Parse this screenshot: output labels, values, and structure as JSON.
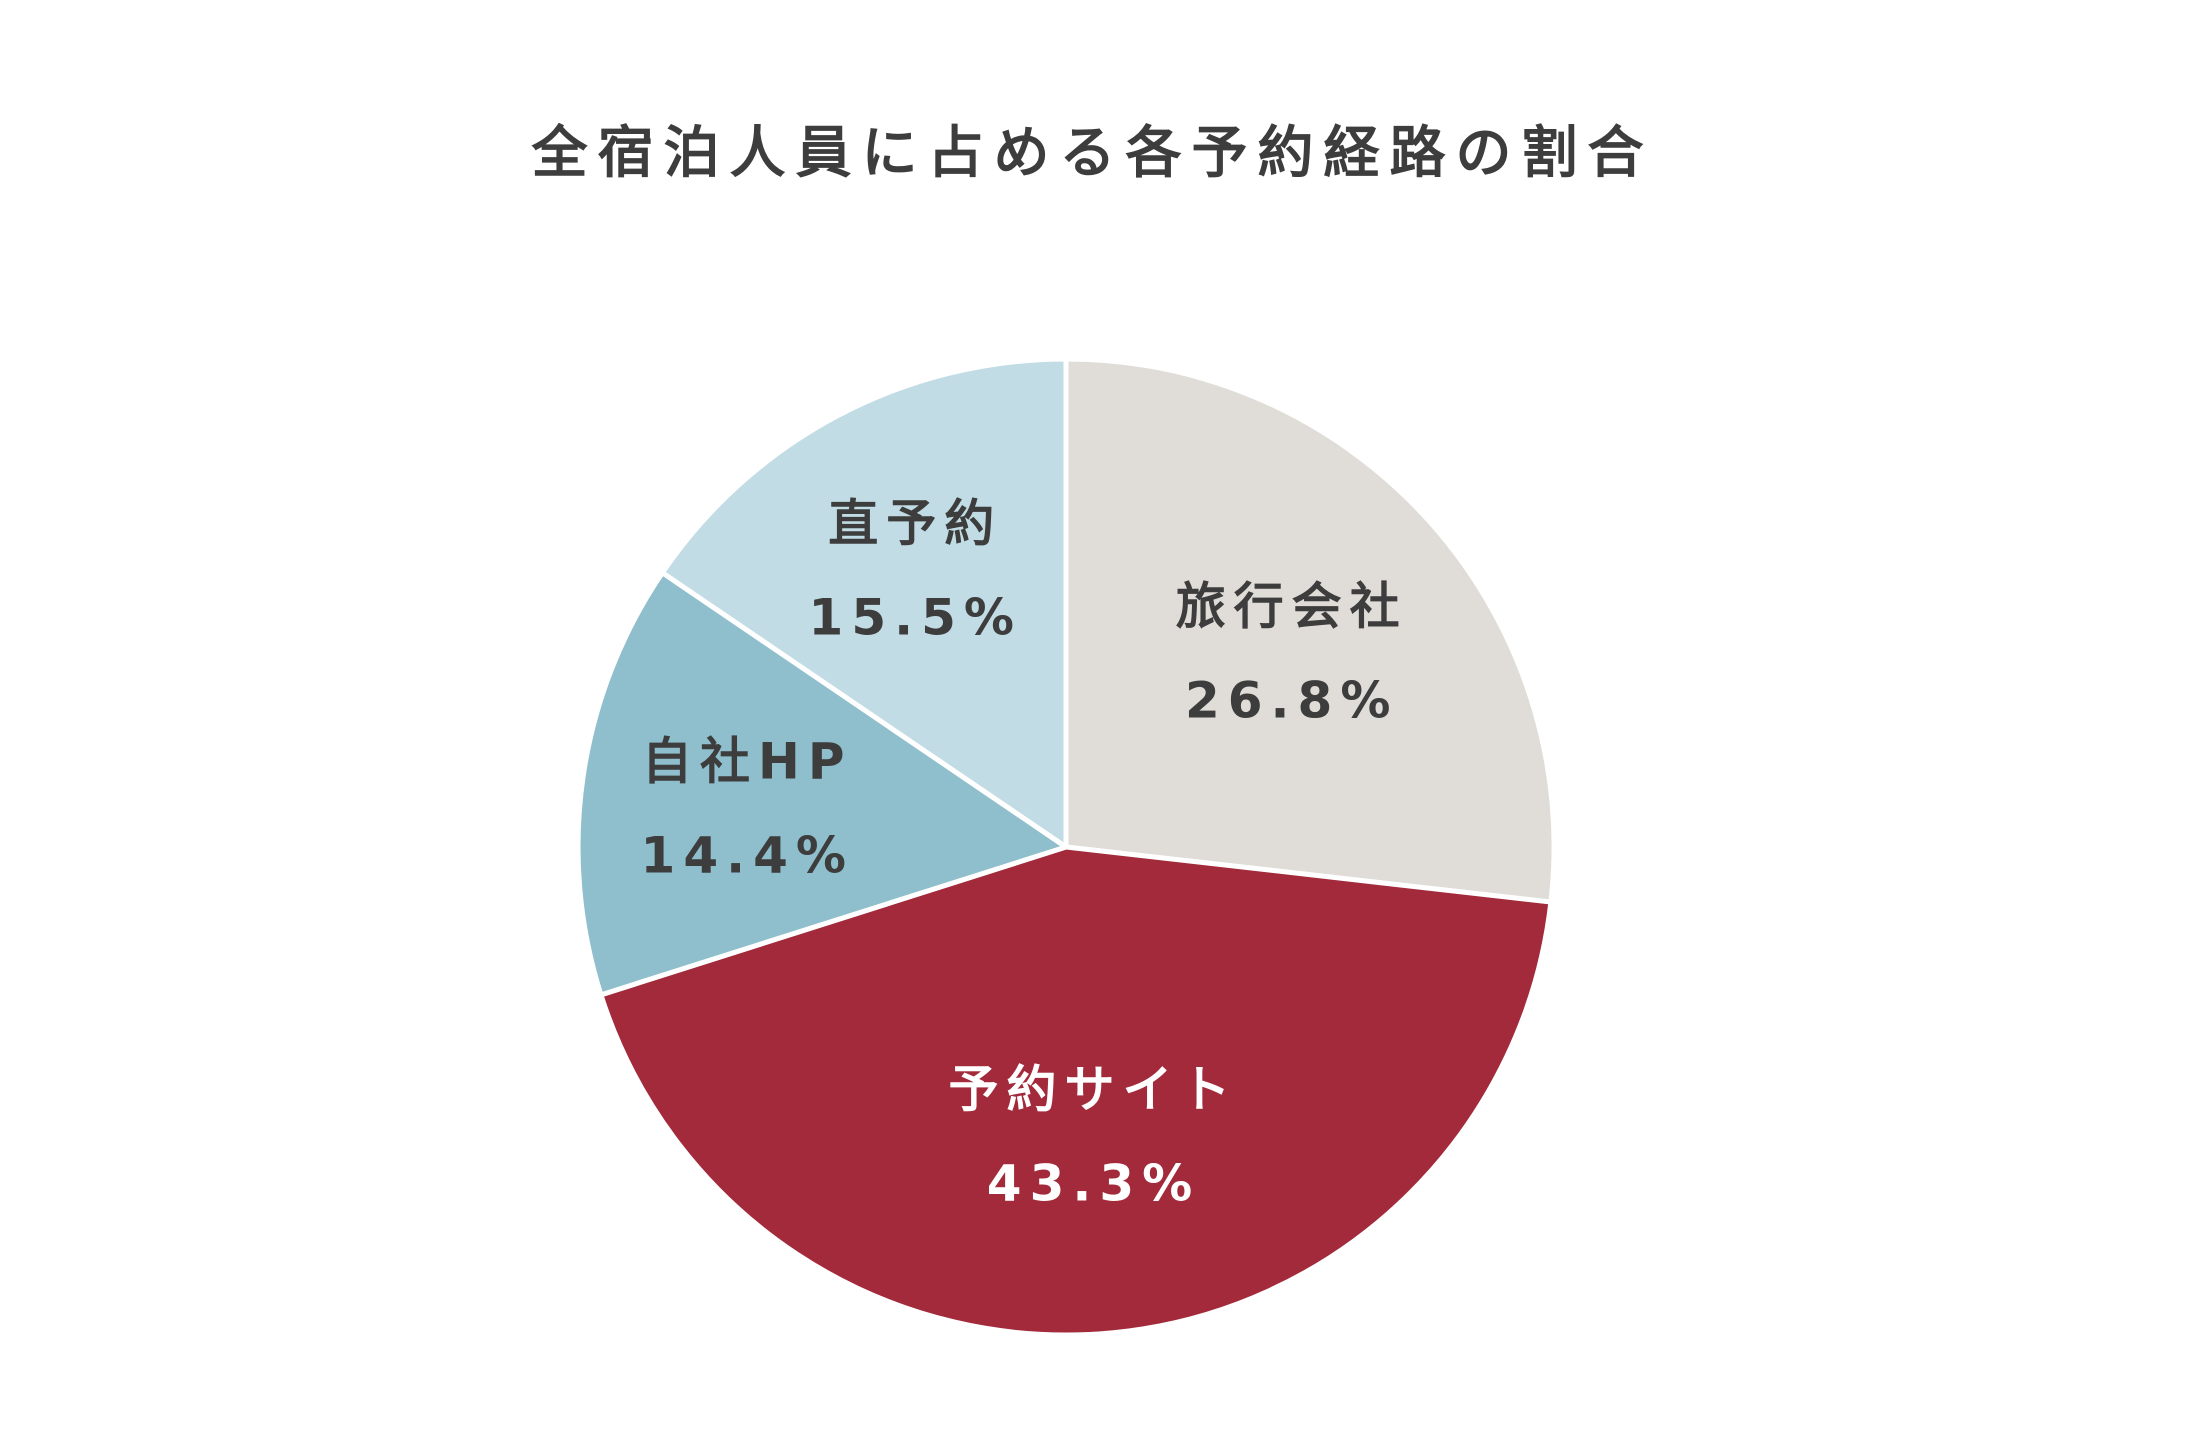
{
  "chart_data": {
    "type": "pie",
    "title": "全宿泊人員に占める各予約経路の割合",
    "slices": [
      {
        "label": "旅行会社",
        "value": 26.8,
        "value_label": "26.8%",
        "color": "#e0ddd8",
        "text_color": "#3d3d3d"
      },
      {
        "label": "予約サイト",
        "value": 43.3,
        "value_label": "43.3%",
        "color": "#a32a3a",
        "text_color": "#ffffff"
      },
      {
        "label": "自社HP",
        "value": 14.4,
        "value_label": "14.4%",
        "color": "#8fbfcd",
        "text_color": "#3d3d3d"
      },
      {
        "label": "直予約",
        "value": 15.5,
        "value_label": "15.5%",
        "color": "#c1dce4",
        "text_color": "#3d3d3d"
      }
    ],
    "start": "12 o'clock",
    "direction": "clockwise",
    "legend": "none",
    "separator_color": "#ffffff"
  }
}
